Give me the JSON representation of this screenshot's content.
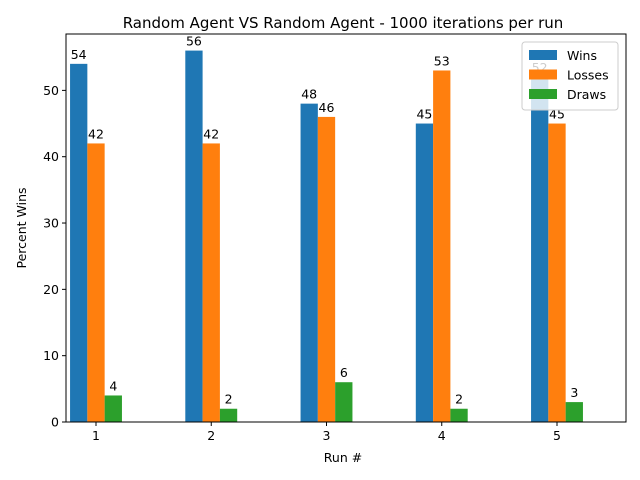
{
  "chart_data": {
    "type": "bar",
    "title": "Random Agent VS Random Agent - 1000 iterations per run",
    "xlabel": "Run #",
    "ylabel": "Percent Wins",
    "categories": [
      "1",
      "2",
      "3",
      "4",
      "5"
    ],
    "series": [
      {
        "name": "Wins",
        "color": "#1f77b4",
        "values": [
          54,
          56,
          48,
          45,
          52
        ]
      },
      {
        "name": "Losses",
        "color": "#ff7f0e",
        "values": [
          42,
          42,
          46,
          53,
          45
        ]
      },
      {
        "name": "Draws",
        "color": "#2ca02c",
        "values": [
          4,
          2,
          6,
          2,
          3
        ]
      }
    ],
    "ylim": [
      0,
      58.5
    ],
    "yticks": [
      0,
      10,
      20,
      30,
      40,
      50
    ],
    "grid": false,
    "legend_position": "top-right"
  }
}
